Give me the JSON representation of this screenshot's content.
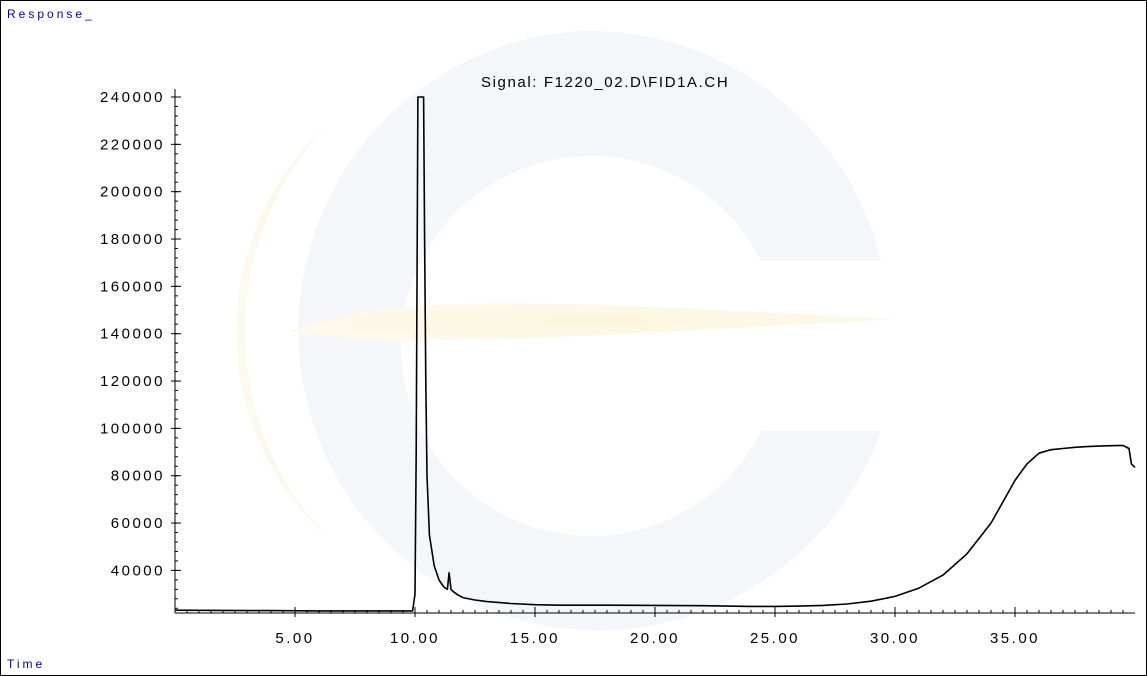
{
  "chart_data": {
    "type": "line",
    "title": "Signal: F1220_02.D\\FID1A.CH",
    "ylabel": "Response_",
    "xlabel": "Time",
    "xlim": [
      0.0,
      40.0
    ],
    "ylim": [
      22000,
      240000
    ],
    "x_ticks": [
      5.0,
      10.0,
      15.0,
      20.0,
      25.0,
      30.0,
      35.0
    ],
    "x_tick_labels": [
      "5.00",
      "10.00",
      "15.00",
      "20.00",
      "25.00",
      "30.00",
      "35.00"
    ],
    "y_ticks": [
      40000,
      60000,
      80000,
      100000,
      120000,
      140000,
      160000,
      180000,
      200000,
      220000,
      240000
    ],
    "y_tick_labels": [
      "40000",
      "60000",
      "80000",
      "100000",
      "120000",
      "140000",
      "160000",
      "180000",
      "200000",
      "220000",
      "240000"
    ],
    "grid": false,
    "line_color": "#000000",
    "series": [
      {
        "x": [
          0.0,
          2.0,
          4.0,
          6.0,
          8.0,
          9.9,
          10.0,
          10.05,
          10.12,
          10.2,
          10.3,
          10.36,
          10.4,
          10.45,
          10.5,
          10.6,
          10.8,
          11.0,
          11.2,
          11.35,
          11.42,
          11.5,
          11.6,
          11.8,
          12.0,
          12.5,
          13.0,
          14.0,
          15.0,
          16.0,
          18.0,
          20.0,
          22.0,
          23.0,
          24.0,
          25.0,
          26.0,
          27.0,
          28.0,
          29.0,
          30.0,
          31.0,
          32.0,
          33.0,
          34.0,
          34.5,
          35.0,
          35.5,
          36.0,
          36.5,
          37.0,
          37.5,
          38.0,
          38.5,
          39.0,
          39.5,
          39.75,
          39.85,
          40.0
        ],
        "y": [
          23200,
          23100,
          23000,
          22900,
          22900,
          22900,
          30000,
          90000,
          240000,
          240000,
          240000,
          240000,
          180000,
          120000,
          80000,
          55000,
          42000,
          36000,
          33000,
          32000,
          39000,
          32000,
          31000,
          29500,
          28500,
          27500,
          26800,
          26000,
          25500,
          25300,
          25300,
          25200,
          25100,
          24900,
          24800,
          24800,
          24900,
          25200,
          25800,
          27000,
          29000,
          32500,
          38000,
          47000,
          60000,
          69000,
          78000,
          85000,
          89500,
          91000,
          91500,
          92000,
          92300,
          92500,
          92700,
          92800,
          91500,
          85000,
          83500
        ]
      }
    ]
  }
}
